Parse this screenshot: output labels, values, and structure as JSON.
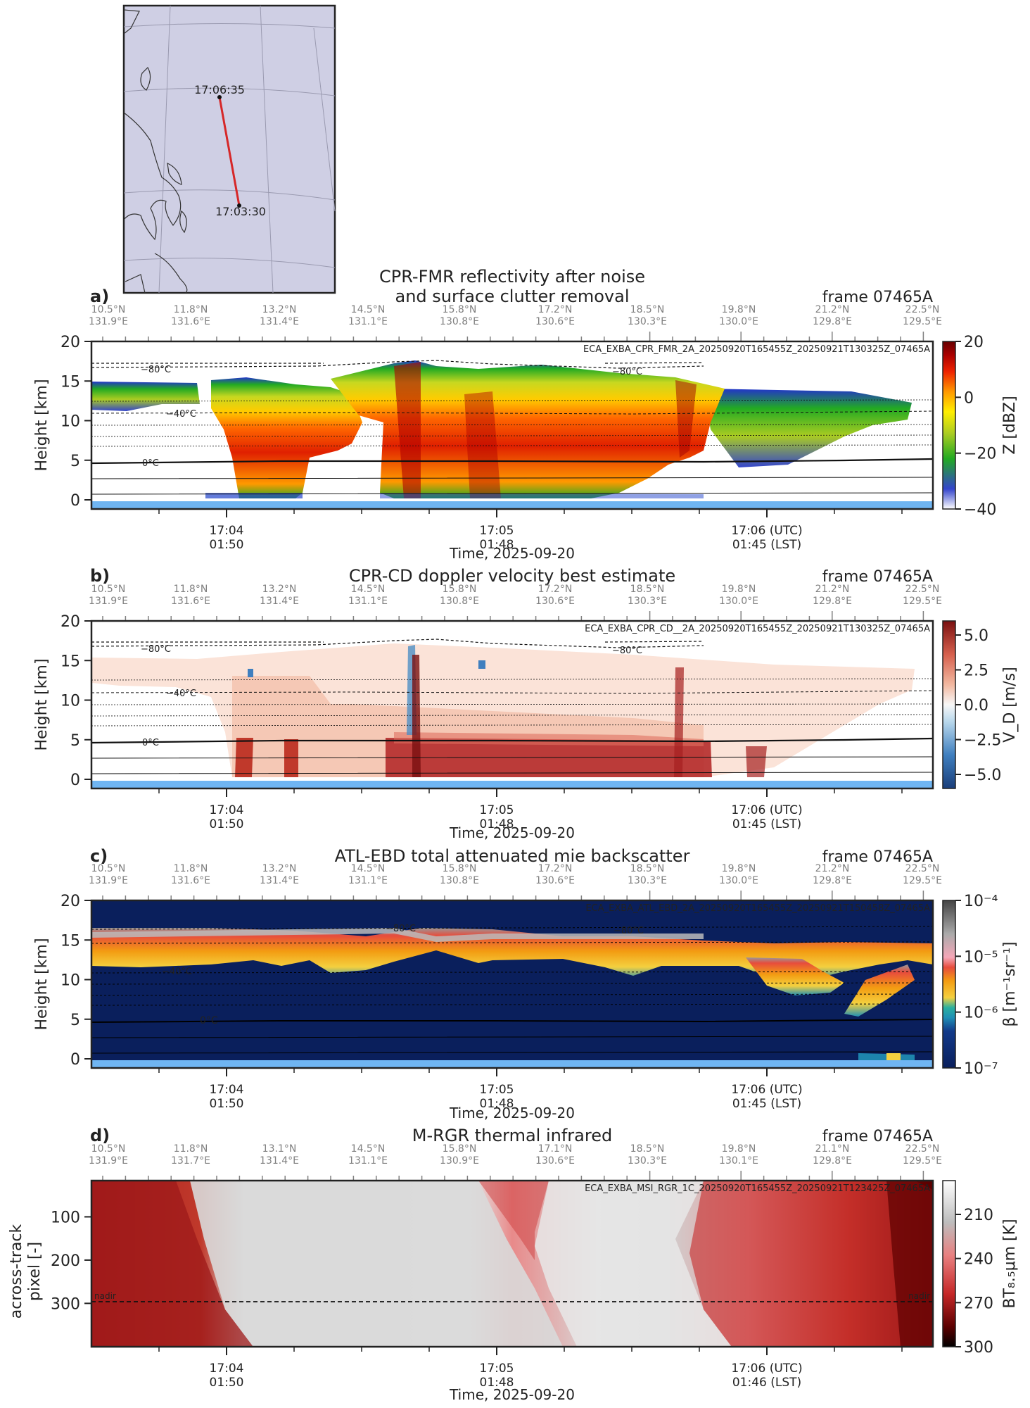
{
  "map": {
    "start_time": "17:06:35",
    "end_time": "17:03:30",
    "track_color": "#d62728"
  },
  "frame_label": "frame 07465A",
  "coord_ticks": [
    {
      "lat": "10.5°N",
      "lon": "131.9°E"
    },
    {
      "lat": "11.8°N",
      "lon": "131.6°E"
    },
    {
      "lat": "13.2°N",
      "lon": "131.4°E"
    },
    {
      "lat": "14.5°N",
      "lon": "131.1°E"
    },
    {
      "lat": "15.8°N",
      "lon": "130.8°E"
    },
    {
      "lat": "17.2°N",
      "lon": "130.6°E"
    },
    {
      "lat": "18.5°N",
      "lon": "130.3°E"
    },
    {
      "lat": "19.8°N",
      "lon": "130.0°E"
    },
    {
      "lat": "21.2°N",
      "lon": "129.8°E"
    },
    {
      "lat": "22.5°N",
      "lon": "129.5°E"
    }
  ],
  "coord_ticks_d": [
    {
      "lat": "10.5°N",
      "lon": "131.9°E"
    },
    {
      "lat": "11.8°N",
      "lon": "131.7°E"
    },
    {
      "lat": "13.1°N",
      "lon": "131.4°E"
    },
    {
      "lat": "14.5°N",
      "lon": "131.1°E"
    },
    {
      "lat": "15.8°N",
      "lon": "130.9°E"
    },
    {
      "lat": "17.1°N",
      "lon": "130.6°E"
    },
    {
      "lat": "18.5°N",
      "lon": "130.3°E"
    },
    {
      "lat": "19.8°N",
      "lon": "130.1°E"
    },
    {
      "lat": "21.1°N",
      "lon": "129.8°E"
    },
    {
      "lat": "22.5°N",
      "lon": "129.5°E"
    }
  ],
  "time_ticks": [
    {
      "utc": "17:04",
      "lst": "01:50"
    },
    {
      "utc": "17:05",
      "lst": "01:48"
    },
    {
      "utc": "17:06 (UTC)",
      "lst": "01:45 (LST)"
    }
  ],
  "time_ticks_d": [
    {
      "utc": "17:04",
      "lst": "01:50"
    },
    {
      "utc": "17:05",
      "lst": "01:48"
    },
    {
      "utc": "17:06 (UTC)",
      "lst": "01:46 (LST)"
    }
  ],
  "xlabel": "Time, 2025-09-20",
  "height_ylabel": "Height [km]",
  "isotherm_labels": [
    "−80°C",
    "−40°C",
    "0°C"
  ],
  "chart_data": [
    {
      "panel": "a)",
      "type": "heatmap",
      "title_lines": [
        "CPR-FMR reflectivity after noise",
        "and surface clutter removal"
      ],
      "product": "ECA_EXBA_CPR_FMR_2A_20250920T165455Z_20250921T130325Z_07465A",
      "ylabel": "Height [km]",
      "ylim": [
        0,
        20
      ],
      "yticks": [
        "0",
        "5",
        "10",
        "15",
        "20"
      ],
      "colorbar_label": "Z [dBZ]",
      "colorbar_ticks": [
        "20",
        "0",
        "−20",
        "−40"
      ],
      "colorbar_range": [
        -40,
        20
      ],
      "colormap": [
        "#ffffff",
        "#3344cc",
        "#22aa22",
        "#aacc22",
        "#ffee00",
        "#ff9900",
        "#ee2200",
        "#aa0000",
        "#660000"
      ]
    },
    {
      "panel": "b)",
      "type": "heatmap",
      "title_lines": [
        "CPR-CD doppler velocity best estimate"
      ],
      "product": "ECA_EXBA_CPR_CD__2A_20250920T165455Z_20250921T130325Z_07465A",
      "ylabel": "Height [km]",
      "ylim": [
        0,
        20
      ],
      "yticks": [
        "0",
        "5",
        "10",
        "15",
        "20"
      ],
      "colorbar_label": "V_D [m/s]",
      "colorbar_ticks": [
        "5.0",
        "2.5",
        "0.0",
        "−2.5",
        "−5.0"
      ],
      "colorbar_range": [
        -6,
        6
      ],
      "colormap": [
        "#1a4e8a",
        "#4f8fc4",
        "#a9cde6",
        "#f5f5f5",
        "#f2b8a0",
        "#d6604d",
        "#8b1a1a"
      ]
    },
    {
      "panel": "c)",
      "type": "heatmap",
      "title_lines": [
        "ATL-EBD total attenuated mie backscatter"
      ],
      "product": "ECA_EXBA_ATL_EBD_2A_20250920T165455Z_20250921T150458Z_07465A",
      "ylabel": "Height [km]",
      "ylim": [
        0,
        20
      ],
      "yticks": [
        "0",
        "5",
        "10",
        "15",
        "20"
      ],
      "colorbar_label": "β [m⁻¹sr⁻¹]",
      "colorbar_ticks": [
        "10⁻⁴",
        "10⁻⁵",
        "10⁻⁶",
        "10⁻⁷"
      ],
      "colorbar_range": [
        1e-07,
        0.0001
      ],
      "log_scale": true,
      "colormap": [
        "#0a1f5c",
        "#123a8a",
        "#1f8fb5",
        "#2ab0a0",
        "#f4d03f",
        "#f39c12",
        "#e74c3c",
        "#f5a7b8",
        "#aaaaaa",
        "#555555"
      ]
    },
    {
      "panel": "d)",
      "type": "heatmap",
      "title_lines": [
        "M-RGR thermal infrared"
      ],
      "product": "ECA_EXBA_MSI_RGR_1C_20250920T165455Z_20250921T123425Z_07465A",
      "ylabel": "across-track pixel [-]",
      "yticks": [
        "100",
        "200",
        "300"
      ],
      "ylim": [
        0,
        384
      ],
      "colorbar_label": "BT₈.₅μm [K]",
      "colorbar_ticks": [
        "210",
        "240",
        "270",
        "300"
      ],
      "colorbar_range": [
        195,
        300
      ],
      "nadir_label": "nadir",
      "nadir_pixel": 280,
      "colormap": [
        "#ffffff",
        "#bdbdbd",
        "#e88080",
        "#c62828",
        "#5c0000",
        "#000000"
      ]
    }
  ]
}
